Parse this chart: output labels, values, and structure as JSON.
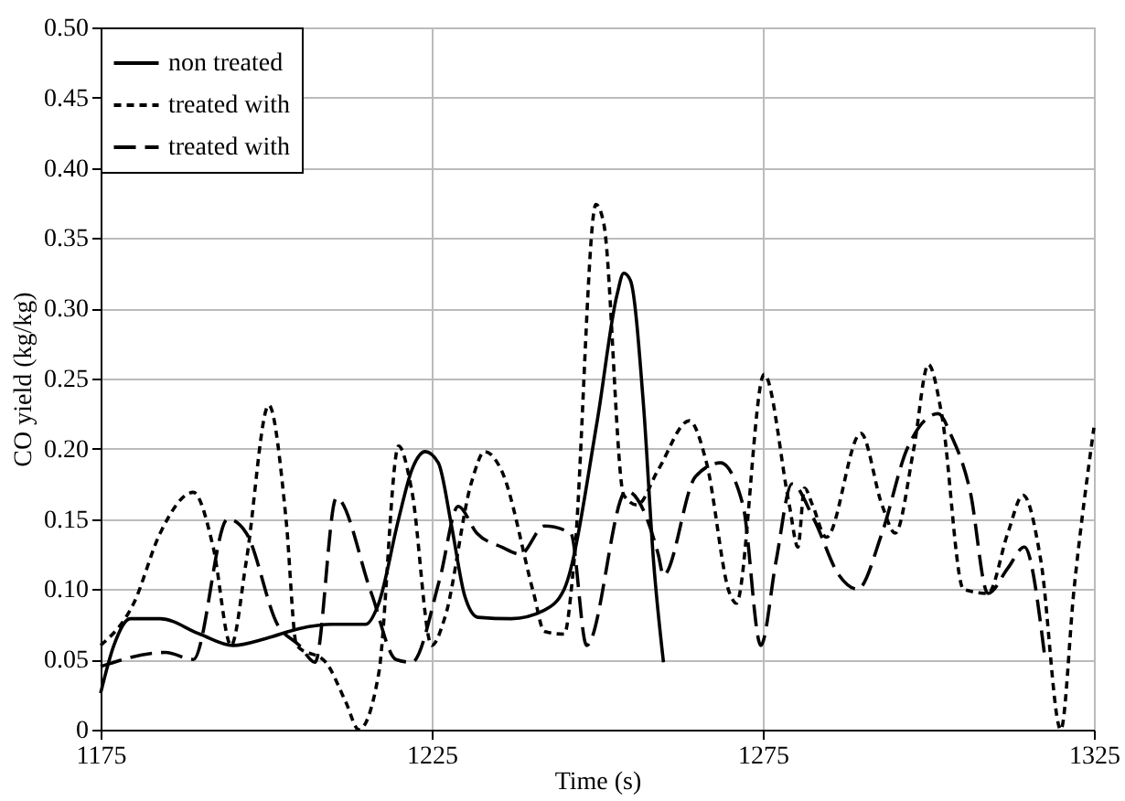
{
  "chart_data": {
    "type": "line",
    "xlabel": "Time (s)",
    "ylabel": "CO yield (kg/kg)",
    "xlim": [
      1175,
      1325
    ],
    "xticks": [
      1175,
      1225,
      1275,
      1325
    ],
    "ylim": [
      0,
      0.5
    ],
    "yticks": [
      0,
      {
        "value": 0.05,
        "label": "0.05"
      },
      {
        "value": 0.1,
        "label": "0.10"
      },
      {
        "value": 0.15,
        "label": "0.15"
      },
      {
        "value": 0.2,
        "label": "0.20"
      },
      {
        "value": 0.25,
        "label": "0.25"
      },
      {
        "value": 0.3,
        "label": "0.30"
      },
      {
        "value": 0.35,
        "label": "0.35"
      },
      {
        "value": 0.4,
        "label": "0.40"
      },
      {
        "value": 0.45,
        "label": "0.45"
      },
      {
        "value": 0.5,
        "label": "0.50"
      }
    ],
    "grid": true,
    "legend": "top left",
    "marker": "none",
    "series": [
      {
        "name": "non treated",
        "color": "#000000",
        "line_style": "solid",
        "x": [
          1175,
          1177,
          1179.5,
          1184,
          1190,
          1195,
          1200,
          1205,
          1210,
          1215,
          1217,
          1220,
          1222,
          1224,
          1226,
          1228,
          1230,
          1232,
          1237,
          1242,
          1245,
          1250,
          1253,
          1254,
          1255,
          1257,
          1258.5,
          1260
        ],
        "values": [
          0.026,
          0.06,
          0.079,
          0.079,
          0.068,
          0.06,
          0.065,
          0.072,
          0.075,
          0.075,
          0.09,
          0.15,
          0.185,
          0.198,
          0.19,
          0.145,
          0.095,
          0.08,
          0.079,
          0.085,
          0.1,
          0.22,
          0.31,
          0.325,
          0.32,
          0.23,
          0.12,
          0.048
        ]
      },
      {
        "name": "treated with",
        "color": "#000000",
        "line_style": "dotted",
        "x": [
          1175,
          1180,
          1184,
          1189,
          1192,
          1194.7,
          1197,
          1200.4,
          1203,
          1204.6,
          1209,
          1212,
          1214,
          1217,
          1220,
          1222,
          1225,
          1227,
          1231,
          1233,
          1235.5,
          1240.4,
          1242,
          1245,
          1246.5,
          1249.8,
          1251,
          1254,
          1256,
          1259.2,
          1263.9,
          1266.5,
          1270,
          1271,
          1275.2,
          1279,
          1280.3,
          1281.3,
          1282.5,
          1284.6,
          1289.8,
          1293,
          1295,
          1297.8,
          1300,
          1302,
          1305.3,
          1309,
          1312,
          1314.3,
          1317,
          1320,
          1322,
          1325
        ],
        "values": [
          0.06,
          0.09,
          0.14,
          0.169,
          0.13,
          0.06,
          0.12,
          0.231,
          0.15,
          0.06,
          0.048,
          0.02,
          0,
          0.04,
          0.202,
          0.17,
          0.06,
          0.08,
          0.176,
          0.198,
          0.185,
          0.097,
          0.07,
          0.068,
          0.12,
          0.374,
          0.36,
          0.167,
          0.16,
          0.185,
          0.22,
          0.19,
          0.097,
          0.09,
          0.253,
          0.16,
          0.13,
          0.172,
          0.16,
          0.137,
          0.211,
          0.16,
          0.14,
          0.2,
          0.26,
          0.225,
          0.1,
          0.097,
          0.14,
          0.167,
          0.12,
          0,
          0.1,
          0.215
        ]
      },
      {
        "name": "treated with",
        "color": "#000000",
        "line_style": "dashed",
        "x": [
          1175,
          1184.8,
          1189,
          1194.2,
          1197,
          1201.7,
          1205,
          1207.4,
          1210.6,
          1215.9,
          1219.6,
          1222,
          1226.2,
          1229,
          1231.8,
          1235.6,
          1238.4,
          1242,
          1246,
          1248.4,
          1254.4,
          1259.2,
          1260,
          1264.8,
          1268.6,
          1272,
          1274.7,
          1277,
          1279.4,
          1282.7,
          1286.5,
          1289.3,
          1293,
          1296.8,
          1301.5,
          1303.4,
          1306.3,
          1309,
          1312,
          1314.5,
          1317.5
        ],
        "values": [
          0.045,
          0.055,
          0.05,
          0.15,
          0.14,
          0.075,
          0.06,
          0.048,
          0.165,
          0.097,
          0.05,
          0.048,
          0.107,
          0.159,
          0.14,
          0.13,
          0.125,
          0.145,
          0.14,
          0.06,
          0.17,
          0.125,
          0.11,
          0.18,
          0.19,
          0.16,
          0.06,
          0.12,
          0.175,
          0.15,
          0.11,
          0.1,
          0.14,
          0.2,
          0.225,
          0.21,
          0.17,
          0.097,
          0.115,
          0.13,
          0.055
        ]
      }
    ]
  }
}
